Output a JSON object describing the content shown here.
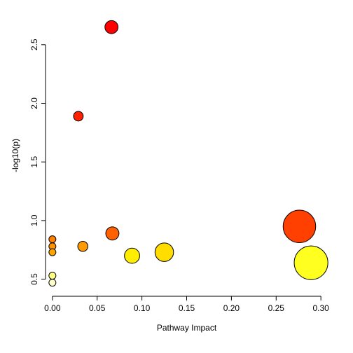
{
  "chart_data": {
    "type": "scatter",
    "title": "",
    "xlabel": "Pathway Impact",
    "ylabel": "-log10(p)",
    "xlim": [
      -0.003,
      0.303
    ],
    "ylim": [
      0.39,
      2.72
    ],
    "x_ticks": [
      0.0,
      0.05,
      0.1,
      0.15,
      0.2,
      0.25,
      0.3
    ],
    "x_tick_labels": [
      "0.00",
      "0.05",
      "0.10",
      "0.15",
      "0.20",
      "0.25",
      "0.30"
    ],
    "y_ticks": [
      0.5,
      1.0,
      1.5,
      2.0,
      2.5
    ],
    "y_tick_labels": [
      "0.5",
      "1.0",
      "1.5",
      "2.0",
      "2.5"
    ],
    "grid": false,
    "legend": "none",
    "points": [
      {
        "x": 0.066,
        "y": 2.65,
        "size": 0.066,
        "color": "#ff0000"
      },
      {
        "x": 0.029,
        "y": 1.89,
        "size": 0.029,
        "color": "#ff2000"
      },
      {
        "x": 0.0,
        "y": 0.84,
        "size": 0.0,
        "color": "#ff8000"
      },
      {
        "x": 0.0,
        "y": 0.78,
        "size": 0.0,
        "color": "#ff9000"
      },
      {
        "x": 0.0,
        "y": 0.73,
        "size": 0.0,
        "color": "#ffa500"
      },
      {
        "x": 0.0,
        "y": 0.53,
        "size": 0.0,
        "color": "#ffff80"
      },
      {
        "x": 0.0,
        "y": 0.47,
        "size": 0.0,
        "color": "#ffffcc"
      },
      {
        "x": 0.034,
        "y": 0.78,
        "size": 0.034,
        "color": "#ff9a00"
      },
      {
        "x": 0.067,
        "y": 0.89,
        "size": 0.067,
        "color": "#ff6000"
      },
      {
        "x": 0.089,
        "y": 0.7,
        "size": 0.089,
        "color": "#ffee00"
      },
      {
        "x": 0.125,
        "y": 0.73,
        "size": 0.125,
        "color": "#ffdd00"
      },
      {
        "x": 0.276,
        "y": 0.95,
        "size": 0.276,
        "color": "#ff4000"
      },
      {
        "x": 0.289,
        "y": 0.64,
        "size": 0.289,
        "color": "#ffff20"
      }
    ]
  }
}
